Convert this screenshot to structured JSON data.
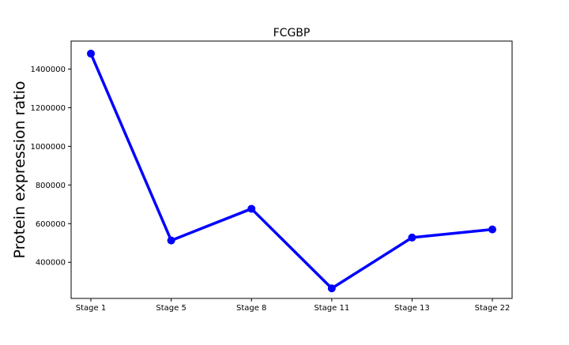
{
  "chart_data": {
    "type": "line",
    "title": "FCGBP",
    "xlabel": "",
    "ylabel": "Protein expression ratio",
    "categories": [
      "Stage 1",
      "Stage 5",
      "Stage 8",
      "Stage 11",
      "Stage 13",
      "Stage 22"
    ],
    "series": [
      {
        "values": [
          1480000,
          513000,
          677000,
          265000,
          528000,
          570000
        ],
        "color": "#0000ff"
      }
    ],
    "ylim": [
      213000,
      1545000
    ],
    "yticks": [
      400000,
      600000,
      800000,
      1000000,
      1200000,
      1400000
    ],
    "grid": false,
    "legend": false
  }
}
